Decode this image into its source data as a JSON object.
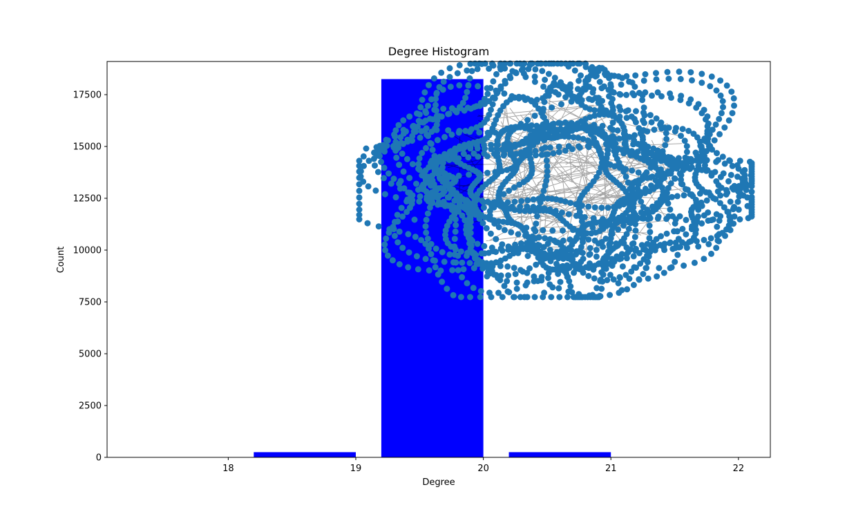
{
  "chart_data": {
    "type": "bar",
    "title": "Degree Histogram",
    "xlabel": "Degree",
    "ylabel": "Count",
    "xlim": [
      17.05,
      22.25
    ],
    "ylim": [
      0,
      19100
    ],
    "x_ticks": [
      18,
      19,
      20,
      21,
      22
    ],
    "y_ticks": [
      0,
      2500,
      5000,
      7500,
      10000,
      12500,
      15000,
      17500
    ],
    "bars": [
      {
        "x_start": 18.2,
        "x_end": 19.0,
        "value": 250
      },
      {
        "x_start": 19.2,
        "x_end": 20.0,
        "value": 18250
      },
      {
        "x_start": 20.2,
        "x_end": 21.0,
        "value": 250
      }
    ],
    "bar_color": "#0000ff",
    "grid": false,
    "overlay": {
      "description_type": "network-graph",
      "node_color": "#1f77b4",
      "edge_color": "#000000"
    }
  }
}
